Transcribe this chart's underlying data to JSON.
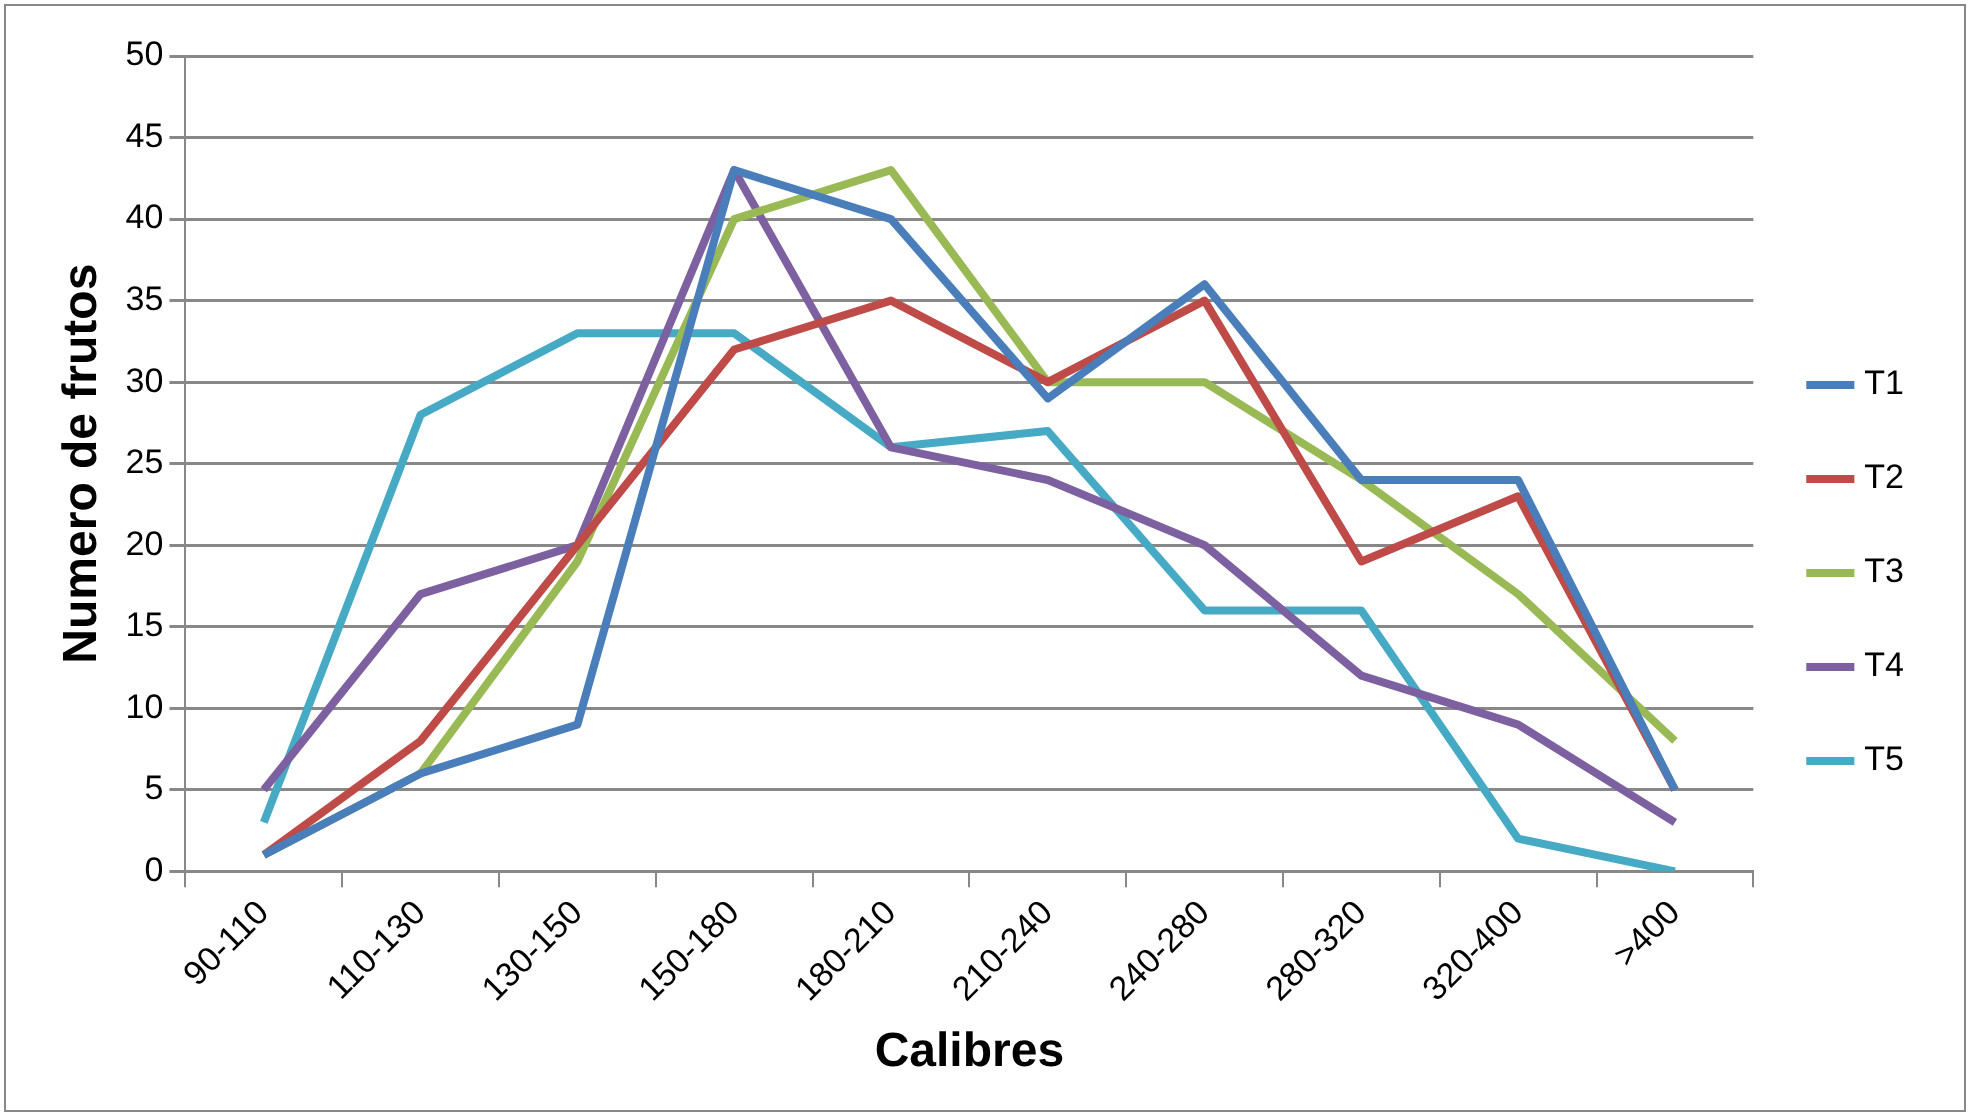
{
  "chart_data": {
    "type": "line",
    "xlabel": "Calibres",
    "ylabel": "Numero de frutos",
    "categories": [
      "90-110",
      "110-130",
      "130-150",
      "150-180",
      "180-210",
      "210-240",
      "240-280",
      "280-320",
      "320-400",
      ">400"
    ],
    "series": [
      {
        "name": "T1",
        "color": "#4a7ebb",
        "values": [
          1,
          6,
          9,
          43,
          40,
          29,
          36,
          24,
          24,
          5
        ]
      },
      {
        "name": "T2",
        "color": "#be4b48",
        "values": [
          1,
          8,
          20,
          32,
          35,
          30,
          35,
          19,
          23,
          5
        ]
      },
      {
        "name": "T3",
        "color": "#98b954",
        "values": [
          1,
          6,
          19,
          40,
          43,
          30,
          30,
          24,
          17,
          8
        ]
      },
      {
        "name": "T4",
        "color": "#7d60a0",
        "values": [
          5,
          17,
          20,
          43,
          26,
          24,
          20,
          12,
          9,
          3
        ]
      },
      {
        "name": "T5",
        "color": "#46aac5",
        "values": [
          3,
          28,
          33,
          33,
          26,
          27,
          16,
          16,
          2,
          0
        ]
      }
    ],
    "ylim": [
      0,
      50
    ],
    "yticks": [
      0,
      5,
      10,
      15,
      20,
      25,
      30,
      35,
      40,
      45,
      50
    ],
    "grid": "y",
    "legend": "right",
    "marker": "none",
    "line_style": "solid"
  }
}
